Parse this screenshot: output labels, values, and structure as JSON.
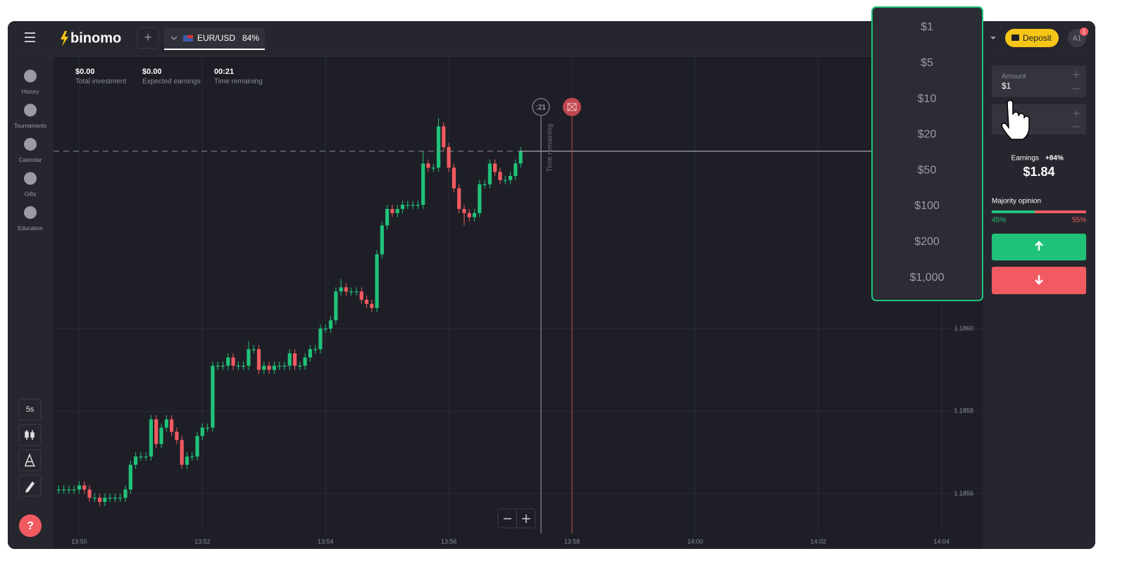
{
  "header": {
    "logo": "binomo",
    "asset": "EUR/USD",
    "payout": "84%",
    "deposit": "Deposit",
    "avatar": "A1",
    "badge": "1"
  },
  "sidebar": {
    "items": [
      "History",
      "Tournaments",
      "Calendar",
      "Gifts",
      "Education"
    ],
    "timeframe": "5s",
    "help": "?"
  },
  "stats": [
    {
      "value": "$0.00",
      "label": "Total investment"
    },
    {
      "value": "$0.00",
      "label": "Expected earnings"
    },
    {
      "value": "00:21",
      "label": "Time remaining"
    }
  ],
  "timer": {
    "countdown": ":21",
    "label": "Time remaining"
  },
  "panel": {
    "amount_label": "Amount",
    "amount_value": "$1",
    "earnings_label": "Earnings",
    "earnings_rate": "+84%",
    "earnings_value": "$1.84",
    "majority_label": "Majority opinion",
    "up_share": "45%",
    "down_share": "55%"
  },
  "amount_options": [
    "$1",
    "$5",
    "$10",
    "$20",
    "$50",
    "$100",
    "$200",
    "$1,000"
  ],
  "chart_data": {
    "type": "candlestick",
    "up_color": "#20c27a",
    "down_color": "#f25a61",
    "grid": true,
    "x": [
      49780,
      49785,
      49790,
      49795,
      49800,
      49805,
      49810,
      49815,
      49820,
      49825,
      49830,
      49835,
      49840,
      49845,
      49850,
      49855,
      49860,
      49865,
      49870,
      49875,
      49880,
      49885,
      49890,
      49895,
      49900,
      49905,
      49910,
      49915,
      49920,
      49925,
      49930,
      49935,
      49940,
      49945,
      49950,
      49955,
      49960,
      49965,
      49970,
      49975,
      49980,
      49985,
      49990,
      49995,
      50000,
      50005,
      50010,
      50015,
      50020,
      50025,
      50030,
      50035,
      50040,
      50045,
      50050,
      50055,
      50060,
      50065,
      50070,
      50075,
      50080,
      50085,
      50090,
      50095,
      50100,
      50105,
      50110,
      50115,
      50120,
      50125,
      50130,
      50135,
      50140,
      50145,
      50150,
      50155,
      50160,
      50165,
      50170,
      50175,
      50180,
      50185,
      50190,
      50195,
      50200,
      50205,
      50210,
      50215,
      50220,
      50225,
      50230
    ],
    "open": [
      1.18561,
      1.18561,
      1.18561,
      1.18561,
      1.18561,
      1.18562,
      1.18561,
      1.18559,
      1.18559,
      1.18558,
      1.18559,
      1.18559,
      1.18559,
      1.18559,
      1.18561,
      1.18567,
      1.18569,
      1.18569,
      1.18569,
      1.18578,
      1.18572,
      1.18576,
      1.18578,
      1.18575,
      1.18573,
      1.18567,
      1.18569,
      1.18569,
      1.18574,
      1.18576,
      1.18576,
      1.18591,
      1.18591,
      1.18591,
      1.18593,
      1.18591,
      1.18591,
      1.18591,
      1.18595,
      1.18595,
      1.1859,
      1.18591,
      1.1859,
      1.18591,
      1.18591,
      1.18591,
      1.18594,
      1.18591,
      1.18591,
      1.18593,
      1.18595,
      1.18595,
      1.186,
      1.186,
      1.18602,
      1.18609,
      1.1861,
      1.18609,
      1.18609,
      1.18609,
      1.18607,
      1.18606,
      1.18605,
      1.18618,
      1.18625,
      1.18629,
      1.18628,
      1.18629,
      1.1863,
      1.1863,
      1.1863,
      1.1863,
      1.1864,
      1.18639,
      1.18639,
      1.18649,
      1.18644,
      1.18639,
      1.18634,
      1.18629,
      1.18628,
      1.18627,
      1.18628,
      1.18635,
      1.18635,
      1.1864,
      1.18638,
      1.18636,
      1.18636,
      1.18637,
      1.1864
    ],
    "high": [
      1.18562,
      1.18562,
      1.18562,
      1.18562,
      1.18563,
      1.18563,
      1.18562,
      1.1856,
      1.1856,
      1.1856,
      1.1856,
      1.1856,
      1.1856,
      1.18562,
      1.18568,
      1.1857,
      1.1857,
      1.1857,
      1.18579,
      1.18579,
      1.18577,
      1.18579,
      1.18579,
      1.18576,
      1.18574,
      1.1857,
      1.1857,
      1.18575,
      1.18577,
      1.18577,
      1.18592,
      1.18592,
      1.18592,
      1.18594,
      1.18594,
      1.18592,
      1.18592,
      1.18597,
      1.18596,
      1.18596,
      1.18592,
      1.18592,
      1.18592,
      1.18592,
      1.18592,
      1.18595,
      1.18595,
      1.18592,
      1.18594,
      1.18596,
      1.18596,
      1.18601,
      1.18601,
      1.18603,
      1.1861,
      1.18612,
      1.18611,
      1.1861,
      1.1861,
      1.1861,
      1.18608,
      1.18607,
      1.18619,
      1.18626,
      1.1863,
      1.1863,
      1.1863,
      1.18631,
      1.18631,
      1.18631,
      1.18631,
      1.18643,
      1.18641,
      1.1864,
      1.18651,
      1.1865,
      1.18645,
      1.1864,
      1.18635,
      1.1863,
      1.18629,
      1.18629,
      1.18636,
      1.18636,
      1.18641,
      1.18641,
      1.18639,
      1.18637,
      1.18638,
      1.18641,
      1.18644
    ],
    "low": [
      1.1856,
      1.1856,
      1.1856,
      1.1856,
      1.1856,
      1.1856,
      1.18558,
      1.18558,
      1.18557,
      1.18557,
      1.18558,
      1.18558,
      1.18558,
      1.18558,
      1.1856,
      1.18566,
      1.18568,
      1.18568,
      1.18568,
      1.18571,
      1.18571,
      1.18575,
      1.18574,
      1.18572,
      1.18566,
      1.18566,
      1.18568,
      1.18568,
      1.18573,
      1.18575,
      1.18575,
      1.1859,
      1.1859,
      1.1859,
      1.1859,
      1.1859,
      1.1859,
      1.1859,
      1.18594,
      1.18589,
      1.18589,
      1.18589,
      1.18589,
      1.1859,
      1.1859,
      1.1859,
      1.1859,
      1.1859,
      1.1859,
      1.18592,
      1.18594,
      1.18594,
      1.18599,
      1.18599,
      1.18601,
      1.18608,
      1.18608,
      1.18608,
      1.18608,
      1.18606,
      1.18605,
      1.18604,
      1.18604,
      1.18617,
      1.18624,
      1.18627,
      1.18627,
      1.18628,
      1.18629,
      1.18629,
      1.18629,
      1.18629,
      1.18638,
      1.18638,
      1.18638,
      1.18643,
      1.18638,
      1.18633,
      1.18628,
      1.18625,
      1.18626,
      1.18626,
      1.18627,
      1.18634,
      1.18634,
      1.18637,
      1.18635,
      1.18635,
      1.18635,
      1.18636,
      1.18639
    ],
    "close": [
      1.18561,
      1.18561,
      1.18561,
      1.18561,
      1.18562,
      1.18561,
      1.18559,
      1.18559,
      1.18558,
      1.18559,
      1.18559,
      1.18559,
      1.18559,
      1.18561,
      1.18567,
      1.18569,
      1.18569,
      1.18569,
      1.18578,
      1.18572,
      1.18576,
      1.18578,
      1.18575,
      1.18573,
      1.18567,
      1.18569,
      1.18569,
      1.18574,
      1.18576,
      1.18576,
      1.18591,
      1.18591,
      1.18591,
      1.18593,
      1.18591,
      1.18591,
      1.18591,
      1.18595,
      1.18595,
      1.1859,
      1.18591,
      1.1859,
      1.18591,
      1.18591,
      1.18591,
      1.18594,
      1.18591,
      1.18591,
      1.18593,
      1.18595,
      1.18595,
      1.186,
      1.186,
      1.18602,
      1.18609,
      1.1861,
      1.18609,
      1.18609,
      1.18609,
      1.18607,
      1.18606,
      1.18605,
      1.18618,
      1.18625,
      1.18629,
      1.18628,
      1.18629,
      1.1863,
      1.1863,
      1.1863,
      1.1863,
      1.1864,
      1.18639,
      1.18639,
      1.18649,
      1.18644,
      1.18639,
      1.18634,
      1.18629,
      1.18628,
      1.18627,
      1.18628,
      1.18635,
      1.18635,
      1.1864,
      1.18638,
      1.18636,
      1.18636,
      1.18637,
      1.1864,
      1.18643
    ],
    "xlim": [
      49775,
      50680
    ],
    "xticks": [
      {
        "value": 49800,
        "label": "13:50"
      },
      {
        "value": 49920,
        "label": "13:52"
      },
      {
        "value": 50040,
        "label": "13:54"
      },
      {
        "value": 50160,
        "label": "13:56"
      },
      {
        "value": 50280,
        "label": "13:58"
      },
      {
        "value": 50400,
        "label": "14:00"
      },
      {
        "value": 50520,
        "label": "14:02"
      },
      {
        "value": 50640,
        "label": "14:04"
      }
    ],
    "ylim": [
      1.1855,
      1.18666
    ],
    "yticks": [
      1.1856,
      1.1858,
      {
        "value": 1.186,
        "label": "1.1860"
      }
    ]
  }
}
